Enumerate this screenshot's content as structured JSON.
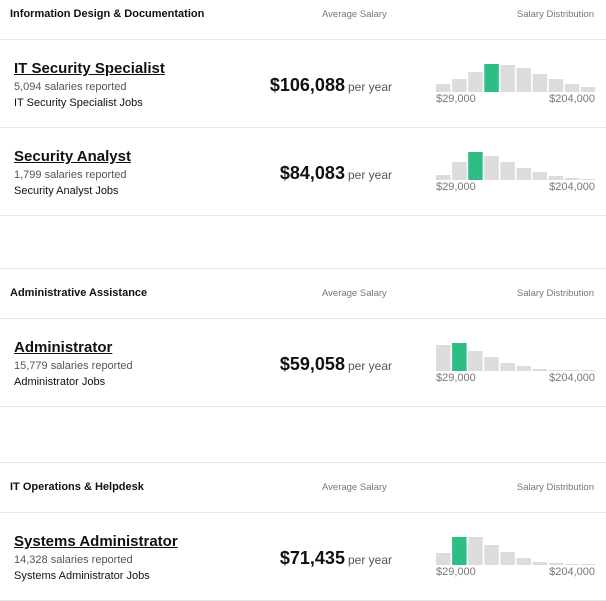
{
  "sections": [
    {
      "title": "Information Design & Documentation",
      "average_header": "Average Salary",
      "distribution_header": "Salary Distribution",
      "jobs": [
        {
          "title": "IT Security Specialist",
          "reported": "5,094 salaries reported",
          "link": "IT Security Specialist Jobs",
          "salary": "$106,088",
          "unit": "per year",
          "distribution": {
            "values": [
              8,
              13,
              20,
              28,
              27,
              24,
              18,
              13,
              8,
              5
            ],
            "highlight": 3,
            "min_label": "$29,000",
            "max_label": "$204,000"
          }
        },
        {
          "title": "Security Analyst",
          "reported": "1,799 salaries reported",
          "link": "Security Analyst Jobs",
          "salary": "$84,083",
          "unit": "per year",
          "distribution": {
            "values": [
              5,
              18,
              28,
              24,
              18,
              12,
              8,
              4,
              2,
              1
            ],
            "highlight": 2,
            "min_label": "$29,000",
            "max_label": "$204,000"
          }
        }
      ]
    },
    {
      "title": "Administrative Assistance",
      "average_header": "Average Salary",
      "distribution_header": "Salary Distribution",
      "jobs": [
        {
          "title": "Administrator",
          "reported": "15,779 salaries reported",
          "link": "Administrator Jobs",
          "salary": "$59,058",
          "unit": "per year",
          "distribution": {
            "values": [
              26,
              28,
              20,
              14,
              8,
              5,
              2,
              1,
              1,
              1
            ],
            "highlight": 1,
            "min_label": "$29,000",
            "max_label": "$204,000"
          }
        }
      ]
    },
    {
      "title": "IT Operations & Helpdesk",
      "average_header": "Average Salary",
      "distribution_header": "Salary Distribution",
      "jobs": [
        {
          "title": "Systems Administrator",
          "reported": "14,328 salaries reported",
          "link": "Systems Administrator Jobs",
          "salary": "$71,435",
          "unit": "per year",
          "distribution": {
            "values": [
              12,
              28,
              28,
              20,
              13,
              7,
              3,
              2,
              1,
              1
            ],
            "highlight": 1,
            "min_label": "$29,000",
            "max_label": "$204,000"
          }
        }
      ]
    }
  ]
}
